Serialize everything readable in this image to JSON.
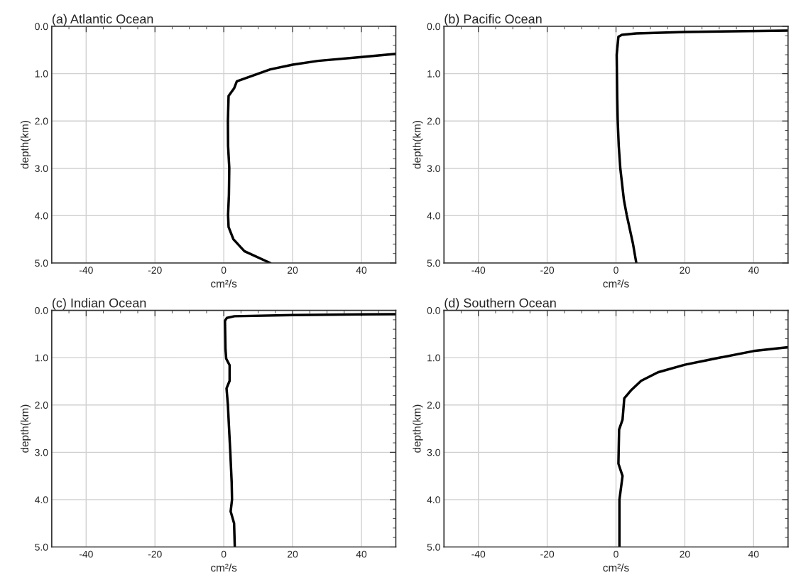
{
  "chart_data": [
    {
      "type": "line",
      "title": "(a) Atlantic Ocean",
      "xlabel": "cm²/s",
      "ylabel": "depth(km)",
      "xlim": [
        -50,
        50
      ],
      "xticks": [
        -40,
        -20,
        0,
        20,
        40
      ],
      "ylim": [
        5,
        0
      ],
      "yticks": [
        {
          "value": 0,
          "label": "0.0"
        },
        {
          "value": 1,
          "label": "1.0"
        },
        {
          "value": 2,
          "label": "2.0"
        },
        {
          "value": 3,
          "label": "3.0"
        },
        {
          "value": 4,
          "label": "4.0"
        },
        {
          "value": 5,
          "label": "5.0"
        }
      ],
      "grid": true,
      "legend": false,
      "series": [
        {
          "color": "#000000",
          "x": [
            50,
            40,
            27.4,
            20,
            13.5,
            3.8,
            3.0,
            1.4,
            1.2,
            1.25,
            1.6,
            1.5,
            1.25,
            1.4,
            2.8,
            6,
            13.5
          ],
          "values": [
            0.58,
            0.65,
            0.73,
            0.81,
            0.91,
            1.16,
            1.31,
            1.47,
            2.0,
            2.52,
            2.99,
            3.56,
            3.98,
            4.24,
            4.5,
            4.75,
            5.0
          ]
        }
      ]
    },
    {
      "type": "line",
      "title": "(b) Pacific Ocean",
      "xlabel": "cm²/s",
      "ylabel": "depth(km)",
      "xlim": [
        -50,
        50
      ],
      "xticks": [
        -40,
        -20,
        0,
        20,
        40
      ],
      "ylim": [
        5,
        0
      ],
      "yticks": [
        {
          "value": 0,
          "label": "0.0"
        },
        {
          "value": 1,
          "label": "1.0"
        },
        {
          "value": 2,
          "label": "2.0"
        },
        {
          "value": 3,
          "label": "3.0"
        },
        {
          "value": 4,
          "label": "4.0"
        },
        {
          "value": 5,
          "label": "5.0"
        }
      ],
      "grid": true,
      "legend": false,
      "series": [
        {
          "color": "#000000",
          "x": [
            50,
            20,
            5.9,
            1.7,
            0.7,
            0.2,
            0.35,
            0.5,
            0.8,
            1.25,
            2.3,
            3.1,
            4.9,
            5.9
          ],
          "values": [
            0.09,
            0.12,
            0.15,
            0.18,
            0.22,
            0.6,
            1.48,
            2.0,
            2.53,
            3.0,
            3.67,
            3.98,
            4.58,
            5.0
          ]
        }
      ]
    },
    {
      "type": "line",
      "title": "(c) Indian Ocean",
      "xlabel": "cm²/s",
      "ylabel": "depth(km)",
      "xlim": [
        -50,
        50
      ],
      "xticks": [
        -40,
        -20,
        0,
        20,
        40
      ],
      "ylim": [
        5,
        0
      ],
      "yticks": [
        {
          "value": 0,
          "label": "0.0"
        },
        {
          "value": 1,
          "label": "1.0"
        },
        {
          "value": 2,
          "label": "2.0"
        },
        {
          "value": 3,
          "label": "3.0"
        },
        {
          "value": 4,
          "label": "4.0"
        },
        {
          "value": 5,
          "label": "5.0"
        }
      ],
      "grid": true,
      "legend": false,
      "series": [
        {
          "color": "#000000",
          "x": [
            50,
            20,
            3.1,
            0.9,
            0.35,
            0.5,
            0.7,
            1.7,
            1.7,
            0.8,
            1.2,
            1.5,
            1.9,
            2.3,
            2.4,
            2.0,
            3.0,
            3.2
          ],
          "values": [
            0.08,
            0.1,
            0.125,
            0.16,
            0.22,
            0.82,
            1.02,
            1.16,
            1.49,
            1.65,
            2.0,
            2.44,
            3.0,
            3.64,
            4.0,
            4.25,
            4.5,
            5.0
          ]
        }
      ]
    },
    {
      "type": "line",
      "title": "(d) Southern Ocean",
      "xlabel": "cm²/s",
      "ylabel": "depth(km)",
      "xlim": [
        -50,
        50
      ],
      "xticks": [
        -40,
        -20,
        0,
        20,
        40
      ],
      "ylim": [
        5,
        0
      ],
      "yticks": [
        {
          "value": 0,
          "label": "0.0"
        },
        {
          "value": 1,
          "label": "1.0"
        },
        {
          "value": 2,
          "label": "2.0"
        },
        {
          "value": 3,
          "label": "3.0"
        },
        {
          "value": 4,
          "label": "4.0"
        },
        {
          "value": 5,
          "label": "5.0"
        }
      ],
      "grid": true,
      "legend": false,
      "series": [
        {
          "color": "#000000",
          "x": [
            50,
            40,
            29.5,
            20,
            12.2,
            7.3,
            4.5,
            2.4,
            1.9,
            0.9,
            0.7,
            1.9,
            1.0,
            1.0
          ],
          "values": [
            0.78,
            0.86,
            1.01,
            1.15,
            1.31,
            1.49,
            1.68,
            1.86,
            2.31,
            2.52,
            3.24,
            3.5,
            4.0,
            5.0
          ]
        }
      ]
    }
  ]
}
